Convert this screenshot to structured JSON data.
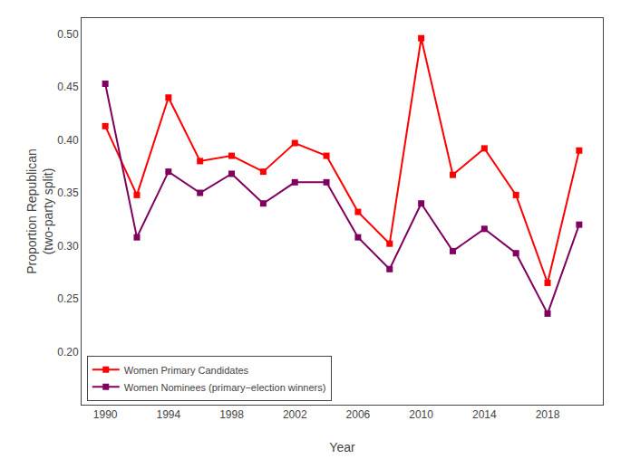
{
  "chart_data": {
    "type": "line",
    "x": [
      1990,
      1992,
      1994,
      1996,
      1998,
      2000,
      2002,
      2004,
      2006,
      2008,
      2010,
      2012,
      2014,
      2016,
      2018,
      2020
    ],
    "series": [
      {
        "name": "Women Primary Candidates",
        "color": "#FF0000",
        "marker": "square",
        "line_style": "solid",
        "values": [
          0.413,
          0.348,
          0.44,
          0.38,
          0.385,
          0.37,
          0.397,
          0.385,
          0.332,
          0.302,
          0.496,
          0.367,
          0.392,
          0.348,
          0.265,
          0.39
        ]
      },
      {
        "name": "Women Nominees (primary−election winners)",
        "color": "#800060",
        "marker": "square",
        "line_style": "solid",
        "values": [
          0.453,
          0.308,
          0.37,
          0.35,
          0.368,
          0.34,
          0.36,
          0.36,
          0.308,
          0.278,
          0.34,
          0.295,
          0.316,
          0.293,
          0.236,
          0.32
        ]
      }
    ],
    "x_label": "Year",
    "y_label": "Proportion Republican\n(two-party split)",
    "xlim": [
      1988.5,
      2021.5
    ],
    "ylim": [
      0.15,
      0.515
    ],
    "xticks": [
      1990,
      1994,
      1998,
      2002,
      2006,
      2010,
      2014,
      2018
    ],
    "yticks": [
      {
        "value": 0.2,
        "label": "0.20"
      },
      0.25,
      {
        "value": 0.3,
        "label": "0.30"
      },
      0.35,
      {
        "value": 0.4,
        "label": "0.40"
      },
      0.45,
      {
        "value": 0.5,
        "label": "0.50"
      }
    ],
    "grid": false,
    "legend": "lower left"
  }
}
